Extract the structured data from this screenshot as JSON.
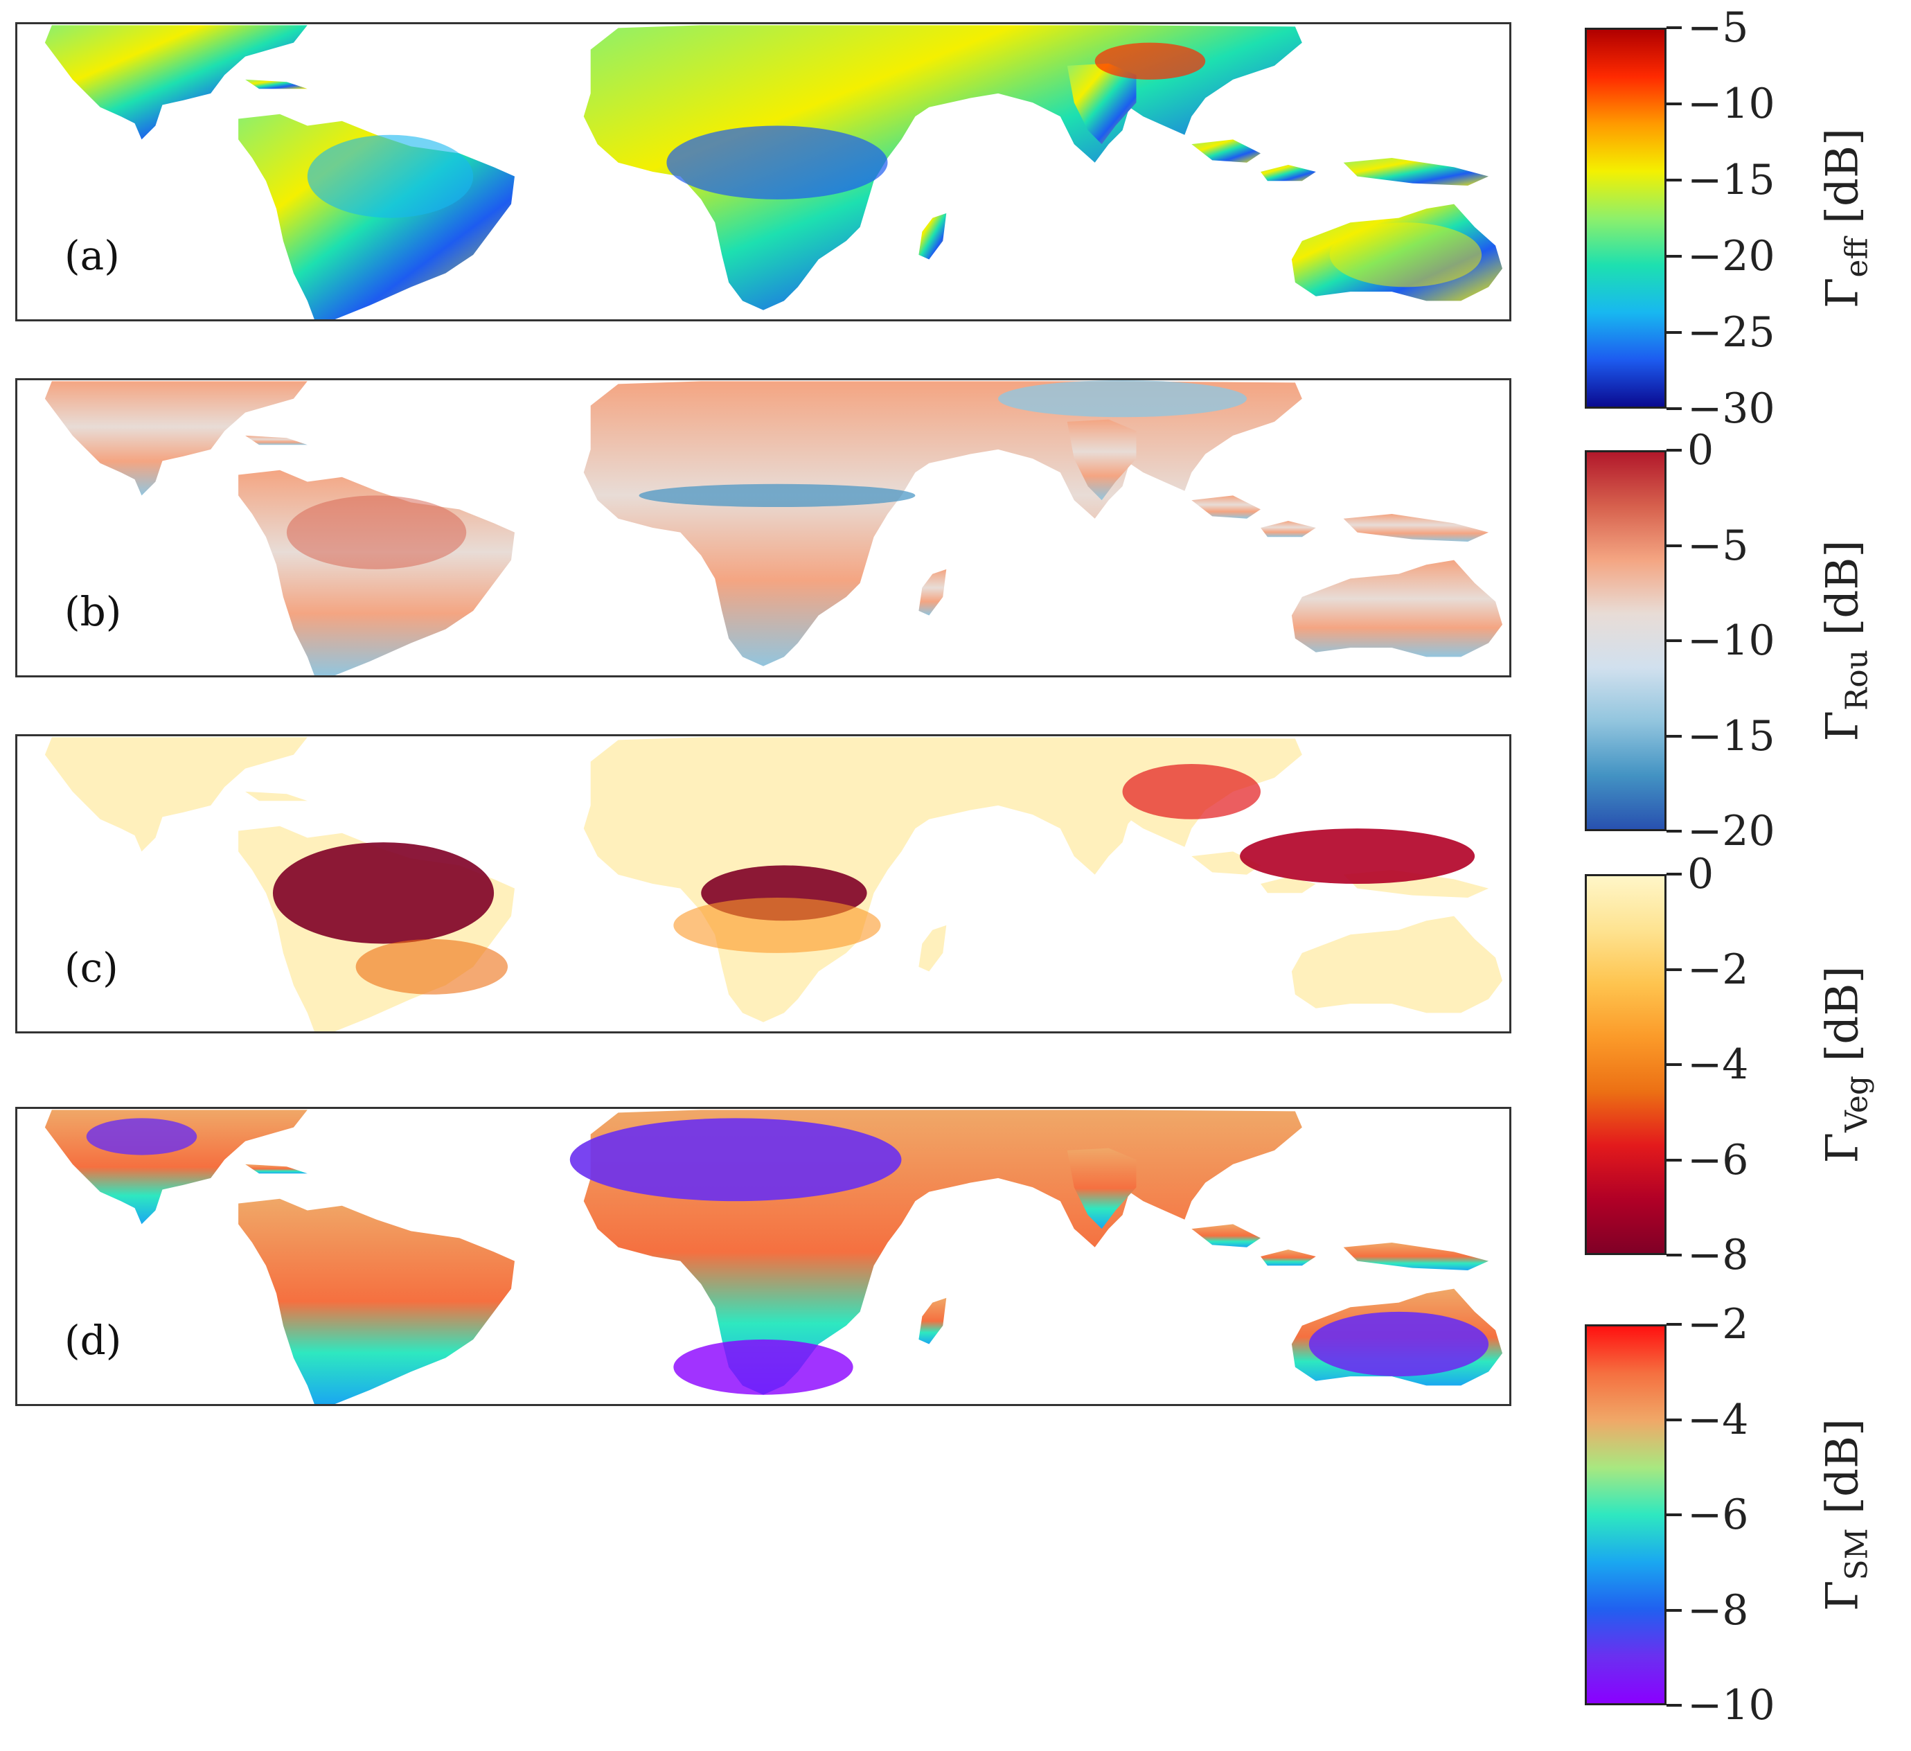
{
  "panels": [
    {
      "label": "(a)",
      "colorbar": {
        "symbol": "Γ",
        "subscript": "eff",
        "unit": "[dB]",
        "ticks": [
          "−5",
          "−10",
          "−15",
          "−20",
          "−25",
          "−30"
        ],
        "colors": [
          "#b00000",
          "#ff2a00",
          "#ff9a00",
          "#f4f000",
          "#8ef06a",
          "#1de0b0",
          "#18b8f0",
          "#1d5cf0",
          "#0a0a90"
        ]
      }
    },
    {
      "label": "(b)",
      "colorbar": {
        "symbol": "Γ",
        "subscript": "Rou",
        "unit": "[dB]",
        "ticks": [
          "0",
          "−5",
          "−10",
          "−15",
          "−20"
        ],
        "colors": [
          "#b2182b",
          "#d6604d",
          "#f4a582",
          "#e8dcd6",
          "#d1e0ee",
          "#92c5de",
          "#4393c3",
          "#2851b0"
        ]
      }
    },
    {
      "label": "(c)",
      "colorbar": {
        "symbol": "Γ",
        "subscript": "Veg",
        "unit": "[dB]",
        "ticks": [
          "0",
          "−2",
          "−4",
          "−6",
          "−8"
        ],
        "colors": [
          "#fff6c8",
          "#fee391",
          "#fec44f",
          "#fb9a29",
          "#ec7014",
          "#e31a1c",
          "#b10026",
          "#800026"
        ]
      }
    },
    {
      "label": "(d)",
      "colorbar": {
        "symbol": "Γ",
        "subscript": "SM",
        "unit": "[dB]",
        "ticks": [
          "−2",
          "−4",
          "−6",
          "−8",
          "−10"
        ],
        "colors": [
          "#ff1010",
          "#f57040",
          "#f0a868",
          "#a8e880",
          "#2ee8c0",
          "#1aa8f0",
          "#2060f0",
          "#6a30f0",
          "#8a00ff"
        ]
      }
    }
  ]
}
